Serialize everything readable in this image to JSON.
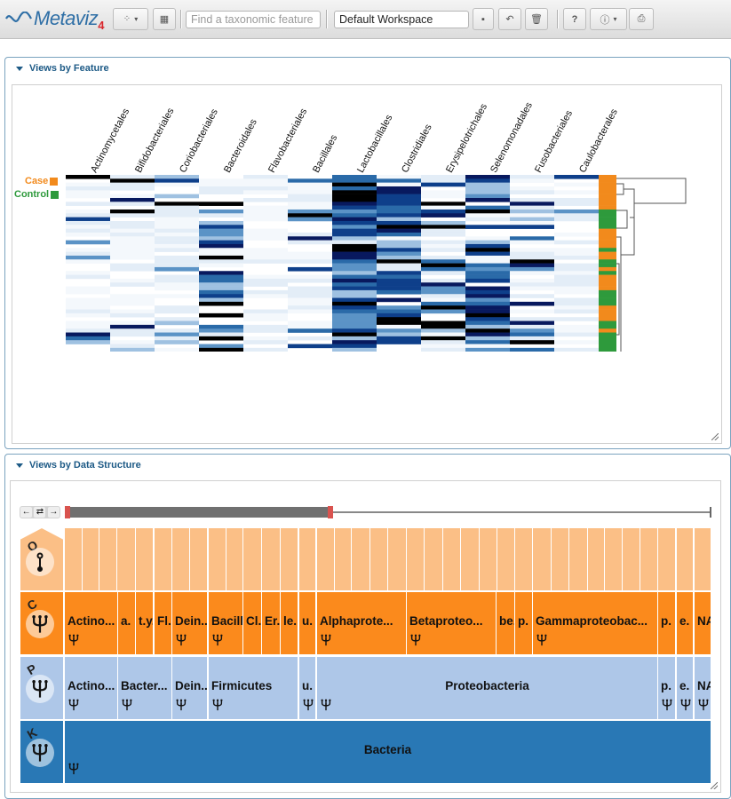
{
  "app": {
    "logo_text": "Metaviz",
    "logo_version": "4",
    "search_placeholder": "Find a taxonomic feature",
    "workspace_value": "Default Workspace",
    "help_label": "?"
  },
  "panels": {
    "feature_title": "Views by Feature",
    "structure_title": "Views by Data Structure"
  },
  "heatmap": {
    "columns": [
      "Actinomycetales",
      "Bifidobacteriales",
      "Coriobacteriales",
      "Bacteroidales",
      "Flavobacteriales",
      "Bacillales",
      "Lactobacillales",
      "Clostridiales",
      "Erysipelotrichales",
      "Selenomonadales",
      "Fusobacteriales",
      "Caulobacterales"
    ],
    "legend": [
      {
        "label": "Case",
        "color": "#f28a1c"
      },
      {
        "label": "Control",
        "color": "#2e9a3c"
      }
    ],
    "row_count": 60
  },
  "icicle": {
    "levels": [
      {
        "letter": "O"
      },
      {
        "letter": "C"
      },
      {
        "letter": "P"
      },
      {
        "letter": "K"
      }
    ],
    "class_labels": [
      "Actino...",
      "a.",
      "t.y.",
      "Fl..",
      "Dein..",
      "Bacill",
      "Cl.",
      "Er.",
      "le.",
      "u.",
      "Alphaprote...",
      "Betaproteo...",
      "be.",
      "p.",
      "Gammaproteobac...",
      "p.",
      "e.",
      "NA"
    ],
    "phylum_labels": [
      "Actino...",
      "Bacter...",
      "Dein..",
      "Firmicutes",
      "u.",
      "Proteobacteria",
      "p.",
      "e.",
      "NA"
    ],
    "kingdom_label": "Bacteria"
  },
  "colors": {
    "order": "#fbbf86",
    "class": "#fb8a1c",
    "phylum": "#aec7e8",
    "kingdom": "#2978b5",
    "accent": "#1d5a86"
  }
}
